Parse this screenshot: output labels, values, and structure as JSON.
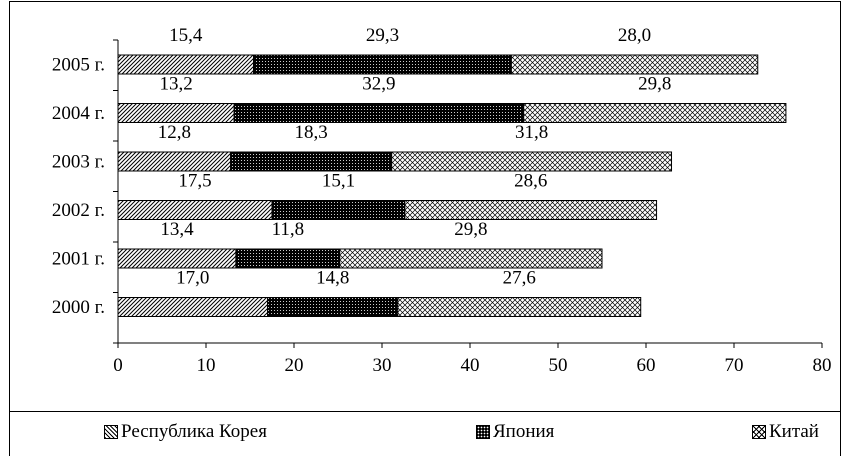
{
  "chart_data": {
    "type": "bar",
    "orientation": "horizontal",
    "stacked": true,
    "categories": [
      "2005 г.",
      "2004 г.",
      "2003 г.",
      "2002 г.",
      "2001 г.",
      "2000 г."
    ],
    "series": [
      {
        "name": "Республика Корея",
        "values": [
          15.4,
          13.2,
          12.8,
          17.5,
          13.4,
          17.0
        ],
        "labels": [
          "15,4",
          "13,2",
          "12,8",
          "17,5",
          "13,4",
          "17,0"
        ],
        "pattern": "diagonal-hatch"
      },
      {
        "name": "Япония",
        "values": [
          29.3,
          32.9,
          18.3,
          15.1,
          11.8,
          14.8
        ],
        "labels": [
          "29,3",
          "32,9",
          "18,3",
          "15,1",
          "11,8",
          "14,8"
        ],
        "pattern": "dark-dotted"
      },
      {
        "name": "Китай",
        "values": [
          28.0,
          29.8,
          31.8,
          28.6,
          29.8,
          27.6
        ],
        "labels": [
          "28,0",
          "29,8",
          "31,8",
          "28,6",
          "29,8",
          "27,6"
        ],
        "pattern": "crosshatch"
      }
    ],
    "xticks": [
      "0",
      "10",
      "20",
      "30",
      "40",
      "50",
      "60",
      "70",
      "80"
    ],
    "xlim": [
      0,
      80
    ],
    "grid": false,
    "legend_position": "bottom"
  }
}
